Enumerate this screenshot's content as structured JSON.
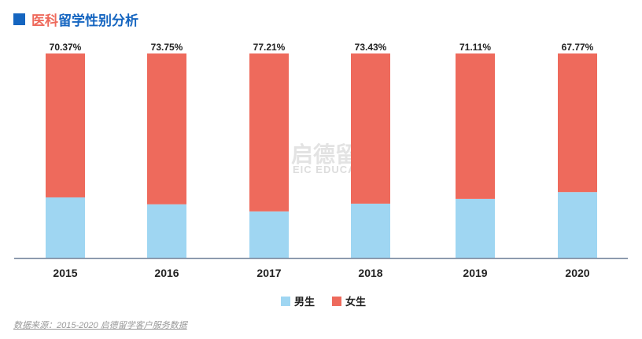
{
  "title": {
    "part1": "医科",
    "part2": "留学性别分析"
  },
  "chart_data": {
    "type": "bar",
    "stacked": true,
    "categories": [
      "2015",
      "2016",
      "2017",
      "2018",
      "2019",
      "2020"
    ],
    "series": [
      {
        "name": "男生",
        "color": "#9fd6f2",
        "values": [
          29.63,
          26.25,
          22.79,
          26.57,
          28.89,
          32.23
        ]
      },
      {
        "name": "女生",
        "color": "#ee6a5c",
        "values": [
          70.37,
          73.75,
          77.21,
          73.43,
          71.11,
          67.77
        ]
      }
    ],
    "ylim": [
      0,
      100
    ],
    "grid": false,
    "legend": "bottom-center"
  },
  "watermark": {
    "cn": "启德留学",
    "en": "EIC EDUCATION"
  },
  "source": "数据来源：2015-2020 启德留学客户服务数据"
}
